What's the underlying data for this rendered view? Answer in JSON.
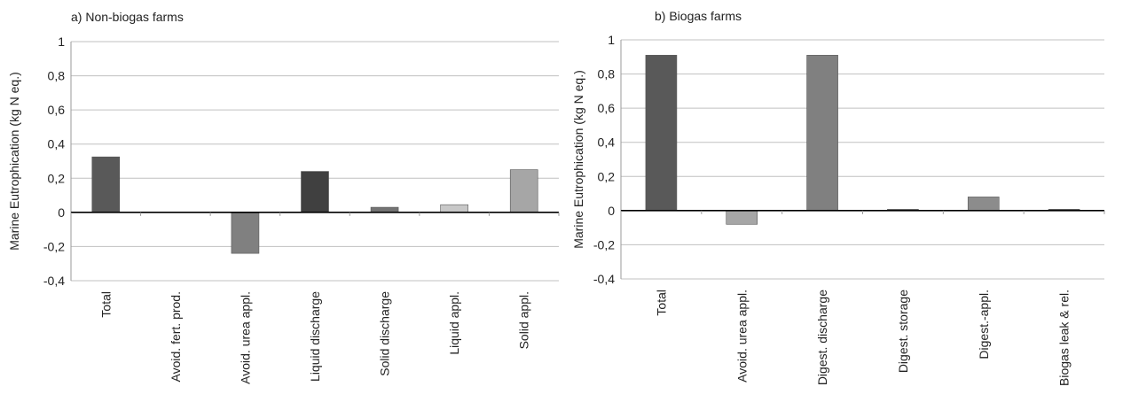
{
  "chart_data": [
    {
      "type": "bar",
      "title": "a) Non-biogas farms",
      "ylabel": "Marine Eutrophication (kg N eq.)",
      "xlabel": "",
      "ylim": [
        -0.4,
        1
      ],
      "yticks": [
        1,
        0.8,
        0.6,
        0.4,
        0.2,
        0,
        -0.2,
        -0.4
      ],
      "ytick_labels": [
        "1",
        "0,8",
        "0,6",
        "0,4",
        "0,2",
        "0",
        "-0,2",
        "-0,4"
      ],
      "grid": true,
      "categories": [
        "Total",
        "Avoid. fert. prod.",
        "Avoid. urea appl.",
        "Liquid discharge",
        "Solid discharge",
        "Liquid appl.",
        "Solid appl."
      ],
      "values": [
        0.325,
        0,
        -0.24,
        0.24,
        0.03,
        0.045,
        0.25
      ],
      "colors": [
        "#595959",
        "#9e9e9e",
        "#808080",
        "#404040",
        "#737373",
        "#c8c8c8",
        "#a6a6a6"
      ]
    },
    {
      "type": "bar",
      "title": "b) Biogas farms",
      "ylabel": "Marine Eutrophication (kg N eq.)",
      "xlabel": "",
      "ylim": [
        -0.4,
        1
      ],
      "yticks": [
        1,
        0.8,
        0.6,
        0.4,
        0.2,
        0,
        -0.2,
        -0.4
      ],
      "ytick_labels": [
        "1",
        "0,8",
        "0,6",
        "0,4",
        "0,2",
        "0",
        "-0,2",
        "-0,4"
      ],
      "grid": true,
      "categories": [
        "Total",
        "Avoid. urea appl.",
        "Digest. discharge",
        "Digest. storage",
        "Digest.-appl.",
        "Biogas leak & rel."
      ],
      "values": [
        0.91,
        -0.08,
        0.91,
        0.003,
        0.08,
        0.003
      ],
      "colors": [
        "#595959",
        "#a6a6a6",
        "#808080",
        "#737373",
        "#8c8c8c",
        "#595959"
      ]
    }
  ]
}
